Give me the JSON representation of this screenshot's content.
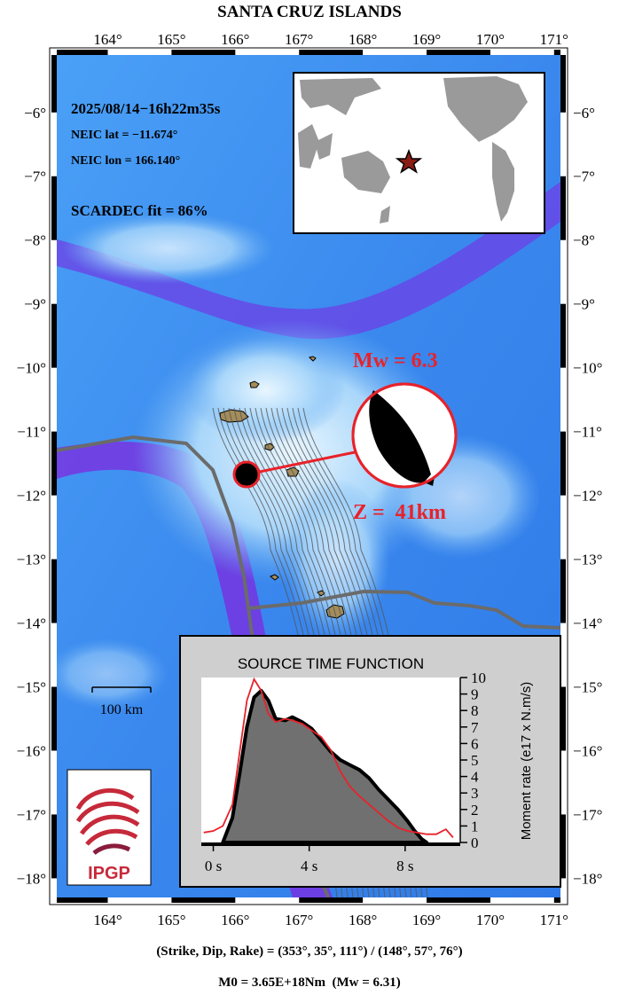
{
  "title": "SANTA CRUZ ISLANDS",
  "event": {
    "datetime": "2025/08/14−16h22m35s",
    "lat_label": "NEIC lat  = −11.674°",
    "lon_label": "NEIC lon = 166.140°",
    "fit_label": "SCARDEC fit = 86%",
    "lat": -11.674,
    "lon": 166.14
  },
  "map": {
    "lon_range": [
      163.2,
      171.1
    ],
    "lat_range": [
      -18.3,
      -5.1
    ],
    "lon_ticks": [
      {
        "value": 164,
        "label": "164°"
      },
      {
        "value": 165,
        "label": "165°"
      },
      {
        "value": 166,
        "label": "166°"
      },
      {
        "value": 167,
        "label": "167°"
      },
      {
        "value": 168,
        "label": "168°"
      },
      {
        "value": 169,
        "label": "169°"
      },
      {
        "value": 170,
        "label": "170°"
      },
      {
        "value": 171,
        "label": "171°"
      }
    ],
    "lat_ticks": [
      {
        "value": -6,
        "label": "−6°"
      },
      {
        "value": -7,
        "label": "−7°"
      },
      {
        "value": -8,
        "label": "−8°"
      },
      {
        "value": -9,
        "label": "−9°"
      },
      {
        "value": -10,
        "label": "−10°"
      },
      {
        "value": -11,
        "label": "−11°"
      },
      {
        "value": -12,
        "label": "−12°"
      },
      {
        "value": -13,
        "label": "−13°"
      },
      {
        "value": -14,
        "label": "−14°"
      },
      {
        "value": -15,
        "label": "−15°"
      },
      {
        "value": -16,
        "label": "−16°"
      },
      {
        "value": -17,
        "label": "−17°"
      },
      {
        "value": -18,
        "label": "−18°"
      }
    ],
    "scale_label": "100 km",
    "mw_label": "Mw = 6.3",
    "depth_label": "Z =  41km",
    "logo_text": "IPGP",
    "colors": {
      "ocean": "#3a8cf0",
      "deep": "#7a2ee0",
      "shallow": "#bfe4ff",
      "plate_boundary": "#6b6b6b",
      "label_red": "#e8222a",
      "logo_red": "#c62a3a"
    }
  },
  "mechanism": {
    "label": "(Strike, Dip, Rake) = (353°, 35°, 111°) / (148°, 57°, 76°)",
    "moment_label": "M0 = 3.65E+18Nm  (Mw = 6.31)"
  },
  "chart_data": {
    "type": "area",
    "title": "SOURCE TIME FUNCTION",
    "xlabel": "",
    "ylabel": "Moment rate (e17 x N.m/s)",
    "xlim": [
      -0.5,
      10.3
    ],
    "ylim": [
      0,
      10
    ],
    "x_ticks": [
      {
        "value": 0,
        "label": "0 s"
      },
      {
        "value": 4,
        "label": "4 s"
      },
      {
        "value": 8,
        "label": "8 s"
      }
    ],
    "y_ticks": [
      0,
      1,
      2,
      3,
      4,
      5,
      6,
      7,
      8,
      9,
      10
    ],
    "series": [
      {
        "style": "filled-black-outline",
        "x": [
          0.4,
          0.8,
          1.1,
          1.4,
          1.7,
          2.0,
          2.3,
          2.6,
          3.0,
          3.3,
          3.7,
          4.1,
          4.5,
          4.9,
          5.3,
          5.7,
          6.1,
          6.5,
          6.9,
          7.3,
          7.7,
          8.1,
          8.4,
          8.7,
          8.9
        ],
        "y": [
          0,
          1.5,
          4.2,
          7.0,
          8.8,
          9.2,
          8.6,
          7.5,
          7.4,
          7.6,
          7.3,
          6.9,
          6.2,
          5.5,
          5.0,
          4.7,
          4.4,
          3.9,
          3.2,
          2.6,
          2.0,
          1.3,
          0.7,
          0.2,
          0
        ]
      },
      {
        "style": "red-line",
        "x": [
          -0.4,
          0,
          0.4,
          0.8,
          1.1,
          1.4,
          1.7,
          2.0,
          2.3,
          2.6,
          3.0,
          3.3,
          3.7,
          4.1,
          4.5,
          4.9,
          5.3,
          5.7,
          6.1,
          6.5,
          6.9,
          7.3,
          7.7,
          8.1,
          8.5,
          8.9,
          9.3,
          9.7,
          10.0
        ],
        "y": [
          0.6,
          0.7,
          1.0,
          2.3,
          5.5,
          8.6,
          9.9,
          9.2,
          7.8,
          7.3,
          7.5,
          7.4,
          7.2,
          6.8,
          6.4,
          5.6,
          4.3,
          3.4,
          2.8,
          2.3,
          1.8,
          1.3,
          0.9,
          0.7,
          0.6,
          0.5,
          0.5,
          0.8,
          0.3
        ]
      }
    ],
    "grid": false
  }
}
